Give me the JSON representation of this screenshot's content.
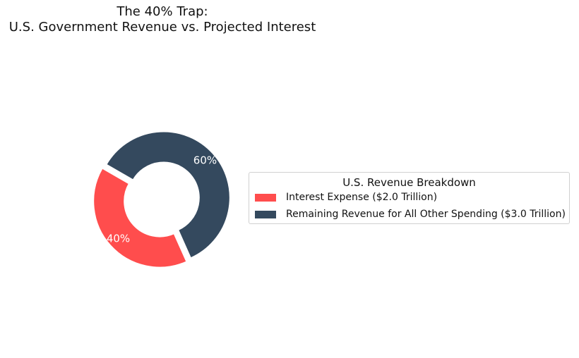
{
  "chart_data": {
    "type": "pie",
    "variant": "donut",
    "title_lines": [
      "The 40% Trap:",
      "U.S. Government Revenue vs. Projected Interest"
    ],
    "slices": [
      {
        "label": "Interest Expense ($2.0 Trillion)",
        "value": 2.0,
        "percent_label": "40%",
        "color": "#ff4d4d"
      },
      {
        "label": "Remaining Revenue for All Other Spending ($3.0 Trillion)",
        "value": 3.0,
        "percent_label": "60%",
        "color": "#34495e"
      }
    ],
    "legend": {
      "title": "U.S. Revenue Breakdown",
      "placement": "right"
    },
    "explode": 0.04,
    "slice_label_color": "#ffffff"
  }
}
